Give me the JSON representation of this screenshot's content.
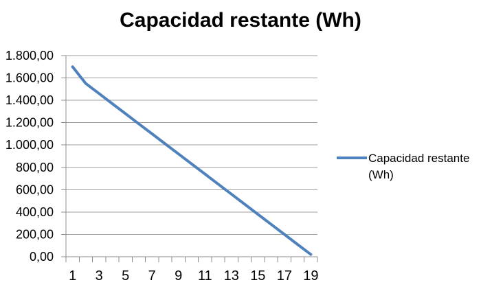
{
  "title": "Capacidad restante (Wh)",
  "legend": {
    "label": "Capacidad restante (Wh)"
  },
  "colors": {
    "series_line": "#4F81BD",
    "gridline": "#9C9C9C",
    "axis_line": "#8C8C8C",
    "tick_text": "#000000",
    "title_text": "#000000",
    "background": "#FFFFFF"
  },
  "chart_data": {
    "type": "line",
    "title": "Capacidad restante (Wh)",
    "x": [
      1,
      2,
      3,
      4,
      5,
      6,
      7,
      8,
      9,
      10,
      11,
      12,
      13,
      14,
      15,
      16,
      17,
      18,
      19
    ],
    "series": [
      {
        "name": "Capacidad restante (Wh)",
        "values": [
          1700,
          1550,
          1460,
          1370,
          1280,
          1190,
          1100,
          1010,
          920,
          830,
          740,
          650,
          560,
          470,
          380,
          290,
          200,
          110,
          20
        ]
      }
    ],
    "xlabel": "",
    "ylabel": "",
    "ylim": [
      0,
      1800
    ],
    "y_tick_step": 200,
    "y_tick_labels": [
      "0,00",
      "200,00",
      "400,00",
      "600,00",
      "800,00",
      "1.000,00",
      "1.200,00",
      "1.400,00",
      "1.600,00",
      "1.800,00"
    ],
    "x_tick_labels": [
      "1",
      "3",
      "5",
      "7",
      "9",
      "11",
      "13",
      "15",
      "17",
      "19"
    ],
    "grid": "horizontal-major",
    "legend_position": "right",
    "number_format": "es-ES"
  }
}
